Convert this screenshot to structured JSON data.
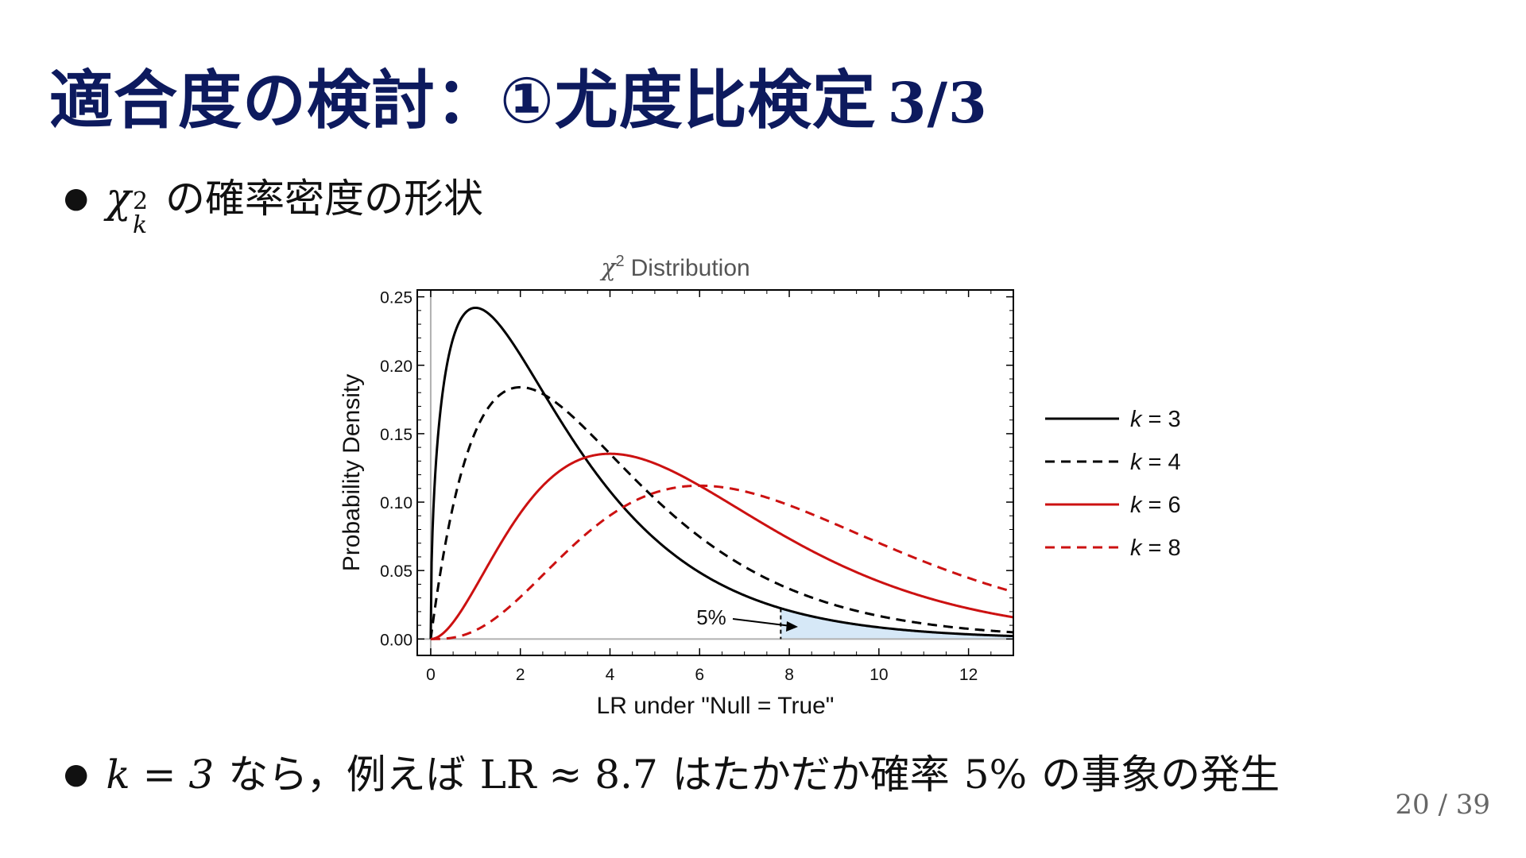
{
  "slide": {
    "title": "適合度の検討：①尤度比検定",
    "title_part": "3/3",
    "bullet1_chi": "χ",
    "bullet1_sup": "2",
    "bullet1_sub": "k",
    "bullet1_text": "の確率密度の形状",
    "bullet2_math1": "k = 3",
    "bullet2_text1": "なら，例えば",
    "bullet2_math2": "LR ≈ 8.7",
    "bullet2_text2": "はたかだか確率",
    "bullet2_math3": "5%",
    "bullet2_text3": "の事象の発生",
    "page_current": "20",
    "page_total": "39",
    "page_sep": "/"
  },
  "colors": {
    "title": "#0d1a5e",
    "black_series": "#000000",
    "red_series": "#cc1111",
    "tail_fill": "#d6e8f7",
    "axis_gray": "#b0b0b0"
  },
  "chart_data": {
    "type": "line",
    "title": "χ² Distribution",
    "title_symbol": "χ",
    "title_sup": "2",
    "title_rest": "Distribution",
    "xlabel": "LR under \"Null = True\"",
    "ylabel": "Probability Density",
    "xlim": [
      -0.3,
      13
    ],
    "ylim": [
      -0.012,
      0.255
    ],
    "x_ticks": [
      0,
      2,
      4,
      6,
      8,
      10,
      12
    ],
    "y_ticks": [
      "0.00",
      "0.05",
      "0.10",
      "0.15",
      "0.20",
      "0.25"
    ],
    "grid": false,
    "legend_position": "right",
    "series": [
      {
        "name": "k = 3",
        "k": 3,
        "color": "#000000",
        "dash": false
      },
      {
        "name": "k = 4",
        "k": 4,
        "color": "#000000",
        "dash": true
      },
      {
        "name": "k = 6",
        "k": 6,
        "color": "#cc1111",
        "dash": false
      },
      {
        "name": "k = 8",
        "k": 8,
        "color": "#cc1111",
        "dash": true
      }
    ],
    "shaded_tail": {
      "from_x": 7.81,
      "series_k": 3,
      "label": "5%"
    }
  }
}
